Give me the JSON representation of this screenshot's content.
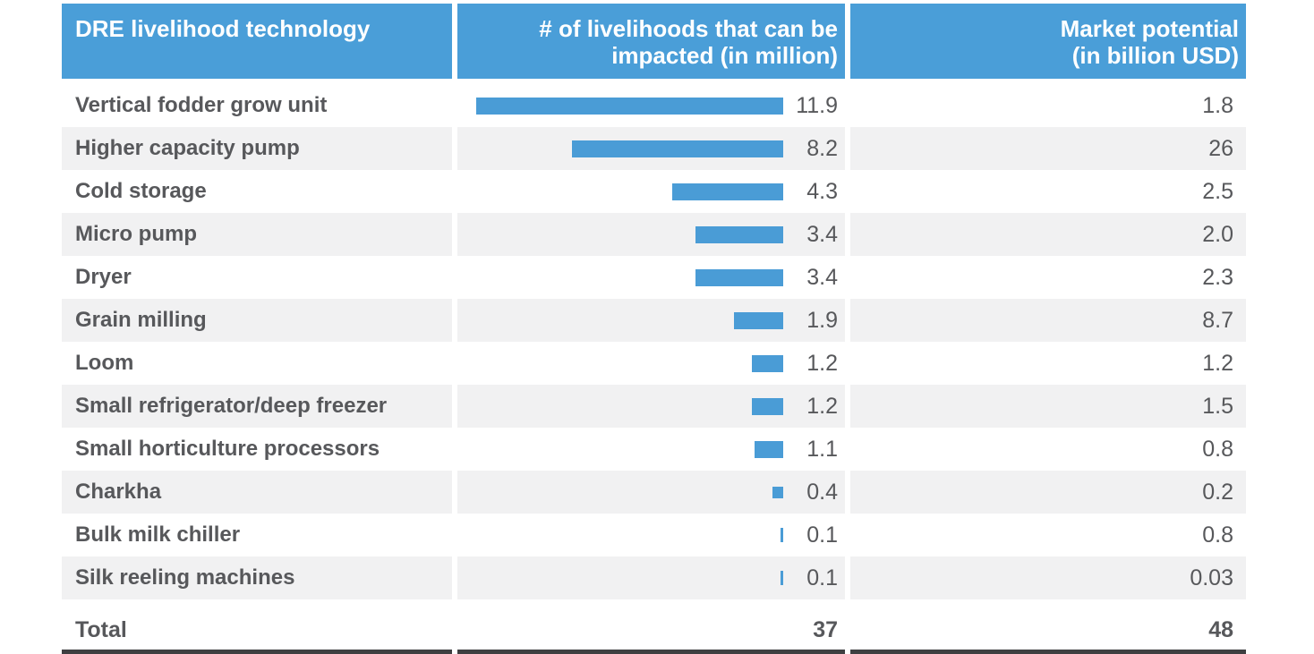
{
  "header": {
    "col1": "DRE livelihood technology",
    "col2": "# of livelihoods that can be\nimpacted (in million)",
    "col3": "Market potential\n(in billion USD)"
  },
  "rows": [
    {
      "technology": "Vertical fodder grow unit",
      "livelihoods": "11.9",
      "market": "1.8"
    },
    {
      "technology": "Higher capacity pump",
      "livelihoods": "8.2",
      "market": "26"
    },
    {
      "technology": "Cold storage",
      "livelihoods": "4.3",
      "market": "2.5"
    },
    {
      "technology": "Micro pump",
      "livelihoods": "3.4",
      "market": "2.0"
    },
    {
      "technology": "Dryer",
      "livelihoods": "3.4",
      "market": "2.3"
    },
    {
      "technology": "Grain milling",
      "livelihoods": "1.9",
      "market": "8.7"
    },
    {
      "technology": "Loom",
      "livelihoods": "1.2",
      "market": "1.2"
    },
    {
      "technology": "Small refrigerator/deep freezer",
      "livelihoods": "1.2",
      "market": "1.5"
    },
    {
      "technology": "Small horticulture processors",
      "livelihoods": "1.1",
      "market": "0.8"
    },
    {
      "technology": "Charkha",
      "livelihoods": "0.4",
      "market": "0.2"
    },
    {
      "technology": "Bulk milk chiller",
      "livelihoods": "0.1",
      "market": "0.8"
    },
    {
      "technology": "Silk reeling machines",
      "livelihoods": "0.1",
      "market": "0.03"
    }
  ],
  "total": {
    "label": "Total",
    "livelihoods": "37",
    "market": "48"
  },
  "colors": {
    "header_bg": "#4a9ed8",
    "bar": "#4a9cd6",
    "alt_row_bg": "#f1f1f2",
    "text": "#57585b",
    "rule": "#3e3f41"
  },
  "chart_data": {
    "type": "bar",
    "orientation": "horizontal",
    "title": "DRE livelihood technology",
    "categories": [
      "Vertical fodder grow unit",
      "Higher capacity pump",
      "Cold storage",
      "Micro pump",
      "Dryer",
      "Grain milling",
      "Loom",
      "Small refrigerator/deep freezer",
      "Small horticulture processors",
      "Charkha",
      "Bulk milk chiller",
      "Silk reeling machines"
    ],
    "series": [
      {
        "name": "# of livelihoods that can be impacted (in million)",
        "shown_as": "bars with data labels",
        "values": [
          11.9,
          8.2,
          4.3,
          3.4,
          3.4,
          1.9,
          1.2,
          1.2,
          1.1,
          0.4,
          0.1,
          0.1
        ],
        "total": 37
      },
      {
        "name": "Market potential (in billion USD)",
        "shown_as": "numeric column only",
        "values": [
          1.8,
          26,
          2.5,
          2.0,
          2.3,
          8.7,
          1.2,
          1.5,
          0.8,
          0.2,
          0.8,
          0.03
        ],
        "total": 48
      }
    ],
    "bar_axis_range": [
      0,
      12
    ],
    "grid": false,
    "legend_position": "none"
  }
}
